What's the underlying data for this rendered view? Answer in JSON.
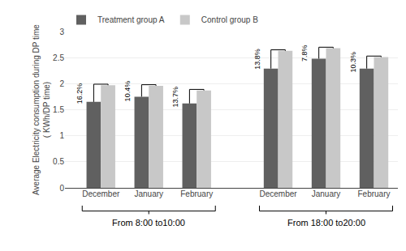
{
  "chart_data": {
    "type": "bar",
    "categories": [
      "December",
      "January",
      "February",
      "December",
      "January",
      "February"
    ],
    "series": [
      {
        "name": "Treatment group A",
        "color": "#606060",
        "values": [
          1.65,
          1.75,
          1.62,
          2.29,
          2.48,
          2.29
        ]
      },
      {
        "name": "Control group B",
        "color": "#c8c8c8",
        "values": [
          1.97,
          1.96,
          1.87,
          2.63,
          2.68,
          2.51
        ]
      }
    ],
    "annotations": [
      "16.2%",
      "10.4%",
      "13.7%",
      "13.8%",
      "7.8%",
      "10.3%"
    ],
    "group_labels": [
      "From 8:00 to10:00",
      "From 18:00 to20:00"
    ],
    "ylabel": "Average Electricity consumption during DP time\n( KWh/DP time)",
    "ylim": [
      0,
      3
    ],
    "yticks": [
      0,
      0.5,
      1,
      1.5,
      2,
      2.5,
      3
    ],
    "grid": true,
    "legend": "upper left"
  }
}
